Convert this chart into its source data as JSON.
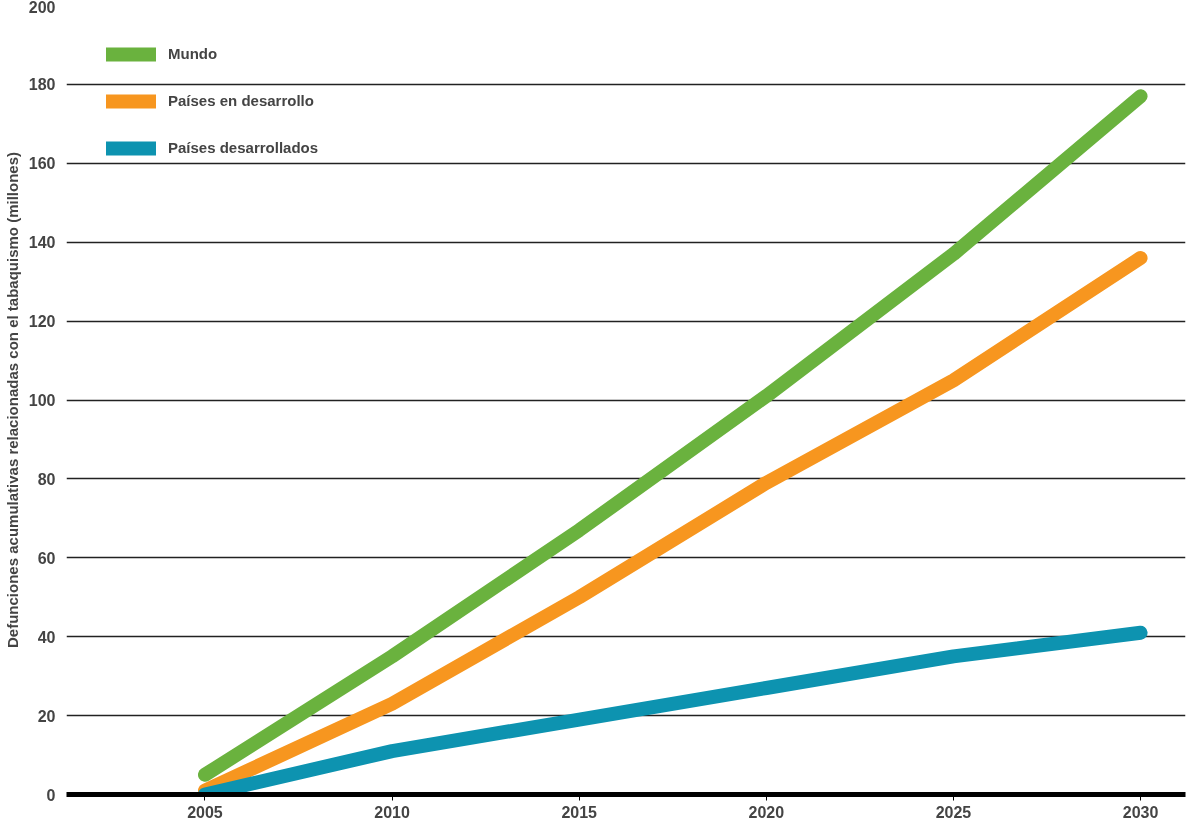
{
  "chart_data": {
    "type": "line",
    "ylabel": "Defunciones acumulativas relacionadas con el tabaquismo (millones)",
    "x": [
      2005,
      2010,
      2015,
      2020,
      2025,
      2030
    ],
    "series": [
      {
        "name": "Mundo",
        "color": "#6ab23e",
        "values": [
          5,
          35,
          67,
          101,
          137,
          177
        ]
      },
      {
        "name": "Países en desarrollo",
        "color": "#f7961f",
        "values": [
          1,
          23,
          50,
          79,
          105,
          136
        ]
      },
      {
        "name": "Países desarrollados",
        "color": "#0d93b0",
        "values": [
          0,
          11,
          19,
          27,
          35,
          41
        ]
      }
    ],
    "xlim": [
      2001.3,
      2031.2
    ],
    "ylim": [
      0,
      200
    ],
    "xticks": [
      2005,
      2010,
      2015,
      2020,
      2025,
      2030
    ],
    "yticks": [
      0,
      20,
      40,
      60,
      80,
      100,
      120,
      140,
      160,
      180,
      200
    ],
    "grid": "y",
    "legend": "top left",
    "marker": "none",
    "line_style": "solid"
  }
}
